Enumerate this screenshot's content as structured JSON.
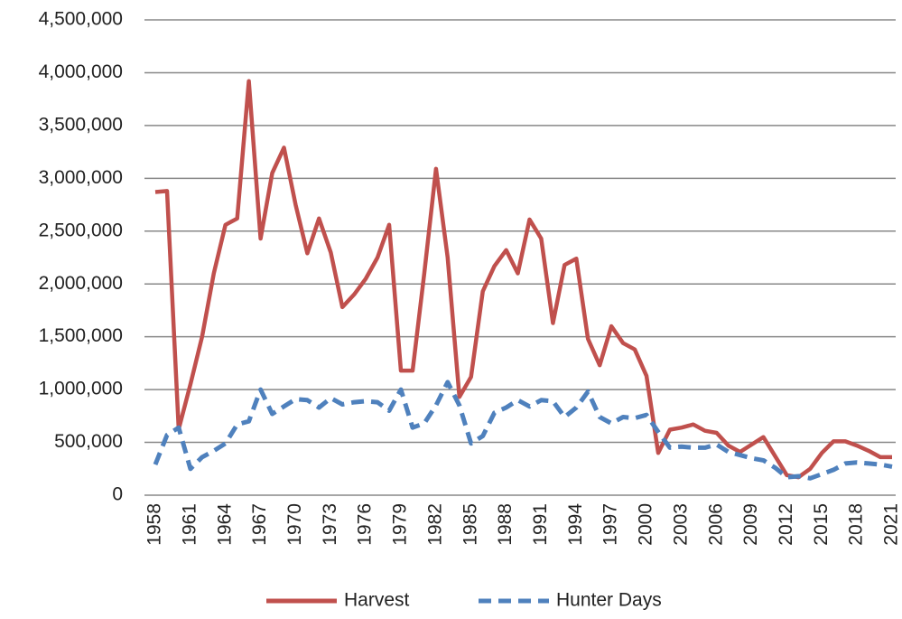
{
  "chart_data": {
    "type": "line",
    "x": [
      1958,
      1959,
      1960,
      1961,
      1962,
      1963,
      1964,
      1965,
      1966,
      1967,
      1968,
      1969,
      1970,
      1971,
      1972,
      1973,
      1974,
      1975,
      1976,
      1977,
      1978,
      1979,
      1980,
      1981,
      1982,
      1983,
      1984,
      1985,
      1986,
      1987,
      1988,
      1989,
      1990,
      1991,
      1992,
      1993,
      1994,
      1995,
      1996,
      1997,
      1998,
      1999,
      2000,
      2001,
      2002,
      2003,
      2004,
      2005,
      2006,
      2007,
      2008,
      2009,
      2010,
      2011,
      2012,
      2013,
      2014,
      2015,
      2016,
      2017,
      2018,
      2019,
      2020,
      2021
    ],
    "xlim": [
      1958,
      2021
    ],
    "xticks": [
      1958,
      1961,
      1964,
      1967,
      1970,
      1973,
      1976,
      1979,
      1982,
      1985,
      1988,
      1991,
      1994,
      1997,
      2000,
      2003,
      2006,
      2009,
      2012,
      2015,
      2018,
      2021
    ],
    "ylim": [
      0,
      4500000
    ],
    "yticks": [
      0,
      {
        "value": 500000,
        "label": "500,000"
      },
      {
        "value": 1000000,
        "label": "1,000,000"
      },
      {
        "value": 1500000,
        "label": "1,500,000"
      },
      {
        "value": 2000000,
        "label": "2,000,000"
      },
      {
        "value": 2500000,
        "label": "2,500,000"
      },
      {
        "value": 3000000,
        "label": "3,000,000"
      },
      {
        "value": 3500000,
        "label": "3,500,000"
      },
      {
        "value": 4000000,
        "label": "4,000,000"
      },
      {
        "value": 4500000,
        "label": "4,500,000"
      }
    ],
    "grid": true,
    "legend": "bottom",
    "series": [
      {
        "name": "Harvest",
        "color": "#c0504d",
        "dashed": false,
        "values": [
          2870000,
          2880000,
          625000,
          1050000,
          1500000,
          2100000,
          2560000,
          2620000,
          3920000,
          2430000,
          3050000,
          3290000,
          2750000,
          2290000,
          2620000,
          2300000,
          1780000,
          1900000,
          2050000,
          2250000,
          2560000,
          1180000,
          1180000,
          2100000,
          3090000,
          2250000,
          930000,
          1120000,
          1930000,
          2170000,
          2320000,
          2100000,
          2610000,
          2430000,
          1630000,
          2180000,
          2240000,
          1480000,
          1230000,
          1600000,
          1440000,
          1380000,
          1130000,
          400000,
          620000,
          640000,
          670000,
          610000,
          590000,
          470000,
          410000,
          480000,
          550000,
          370000,
          190000,
          170000,
          250000,
          400000,
          510000,
          510000,
          470000,
          420000,
          360000,
          360000
        ]
      },
      {
        "name": "Hunter Days",
        "color": "#4f81bd",
        "dashed": true,
        "values": [
          290000,
          570000,
          640000,
          250000,
          360000,
          420000,
          490000,
          670000,
          700000,
          1000000,
          770000,
          840000,
          910000,
          900000,
          830000,
          920000,
          860000,
          880000,
          890000,
          880000,
          800000,
          1000000,
          640000,
          680000,
          850000,
          1070000,
          850000,
          490000,
          560000,
          780000,
          830000,
          900000,
          840000,
          900000,
          890000,
          740000,
          830000,
          980000,
          740000,
          680000,
          740000,
          730000,
          760000,
          600000,
          450000,
          460000,
          450000,
          450000,
          480000,
          410000,
          380000,
          350000,
          330000,
          260000,
          170000,
          180000,
          160000,
          200000,
          240000,
          300000,
          310000,
          300000,
          290000,
          270000
        ]
      }
    ]
  }
}
